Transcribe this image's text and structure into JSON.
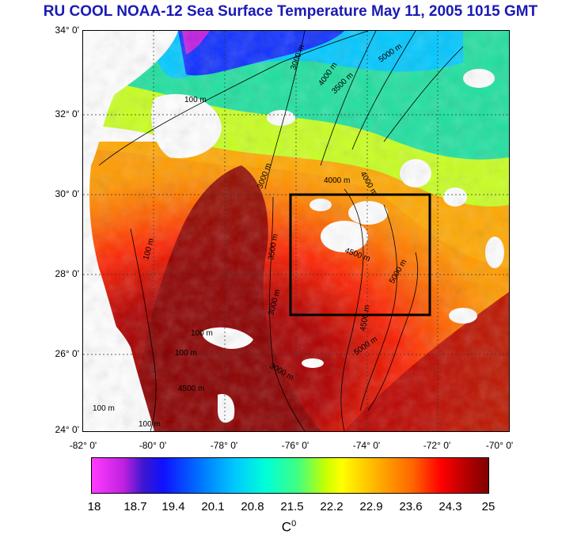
{
  "title": "RU COOL  NOAA-12 Sea Surface Temperature May 11, 2005 1015 GMT",
  "lat_labels": [
    "34° 0'",
    "32° 0'",
    "30° 0'",
    "28° 0'",
    "26° 0'",
    "24° 0'"
  ],
  "lon_labels": [
    "-82° 0'",
    "-80° 0'",
    "-78° 0'",
    "-76° 0'",
    "-74° 0'",
    "-72° 0'",
    "-70° 0'"
  ],
  "colorbar": {
    "values": [
      "18",
      "18.7",
      "19.4",
      "20.1",
      "20.8",
      "21.5",
      "22.2",
      "22.9",
      "23.6",
      "24.3",
      "25"
    ],
    "unit": "C",
    "unit_sup": "0"
  },
  "isobath_labels": [
    "100 m",
    "3000 m",
    "4000 m",
    "4500 m",
    "5000 m",
    "3000 m",
    "4000 m",
    "3500 m",
    "4000 m",
    "4500 m",
    "5000 m",
    "100 m",
    "3000 m",
    "3500 m",
    "4500 m",
    "5000 m",
    "100 m",
    "100 m",
    "3000 m",
    "100 m",
    "100 m"
  ],
  "colors": {
    "title": "#1a1ab4",
    "box": "#000000"
  }
}
